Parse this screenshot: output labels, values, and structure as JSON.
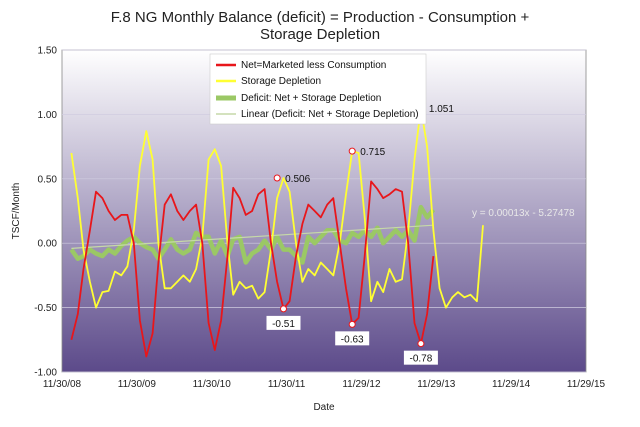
{
  "chart_data": {
    "type": "line",
    "title_line1": "F.8 NG Monthly Balance (deficit) = Production - Consumption +",
    "title_line2": "Storage Depletion",
    "xlabel": "Date",
    "ylabel": "TSCF/Month",
    "x_ticks": [
      "11/30/08",
      "11/30/09",
      "11/30/10",
      "11/30/11",
      "11/29/12",
      "11/29/13",
      "11/29/14",
      "11/29/15"
    ],
    "xlim": [
      "2008-11-30",
      "2015-11-29"
    ],
    "ylim": [
      -1.0,
      1.5
    ],
    "y_ticks": [
      "-1.00",
      "-0.50",
      "0.00",
      "0.50",
      "1.00",
      "1.50"
    ],
    "y_tick_values": [
      -1.0,
      -0.5,
      0.0,
      0.5,
      1.0,
      1.5
    ],
    "grid": "horizontal",
    "legend_position": "top-center",
    "background_gradient": [
      "#ffffff",
      "#5c4a8a"
    ],
    "series": [
      {
        "name": "Net=Marketed less Consumption",
        "color": "#e8161b",
        "start": "2009-01",
        "values": [
          -0.75,
          -0.55,
          -0.2,
          0.1,
          0.4,
          0.35,
          0.25,
          0.18,
          0.22,
          0.22,
          0.0,
          -0.6,
          -0.88,
          -0.7,
          -0.15,
          0.3,
          0.38,
          0.25,
          0.18,
          0.25,
          0.3,
          0.0,
          -0.62,
          -0.83,
          -0.6,
          -0.1,
          0.43,
          0.35,
          0.22,
          0.25,
          0.38,
          0.42,
          0.0,
          -0.3,
          -0.51,
          -0.45,
          -0.1,
          0.15,
          0.3,
          0.25,
          0.2,
          0.3,
          0.35,
          0.0,
          -0.35,
          -0.63,
          -0.58,
          -0.1,
          0.48,
          0.42,
          0.35,
          0.38,
          0.42,
          0.4,
          0.0,
          -0.62,
          -0.78,
          -0.55,
          -0.1
        ]
      },
      {
        "name": "Storage Depletion",
        "color": "#ffff33",
        "start": "2009-01",
        "values": [
          0.7,
          0.35,
          -0.05,
          -0.3,
          -0.5,
          -0.38,
          -0.37,
          -0.22,
          -0.25,
          -0.18,
          0.1,
          0.6,
          0.87,
          0.65,
          0.0,
          -0.35,
          -0.35,
          -0.3,
          -0.25,
          -0.3,
          -0.2,
          0.05,
          0.65,
          0.73,
          0.6,
          0.0,
          -0.4,
          -0.3,
          -0.35,
          -0.33,
          -0.43,
          -0.38,
          -0.05,
          0.35,
          0.506,
          0.4,
          0.0,
          -0.3,
          -0.2,
          -0.25,
          -0.15,
          -0.2,
          -0.25,
          0.0,
          0.38,
          0.715,
          0.7,
          0.2,
          -0.45,
          -0.3,
          -0.38,
          -0.2,
          -0.3,
          -0.28,
          0.1,
          0.65,
          1.051,
          0.75,
          0.1,
          -0.35,
          -0.5,
          -0.42,
          -0.38,
          -0.42,
          -0.4,
          -0.45,
          0.14
        ]
      },
      {
        "name": "Deficit: Net + Storage Depletion",
        "color": "#9bc865",
        "start": "2009-01",
        "values": [
          -0.05,
          -0.12,
          -0.1,
          -0.05,
          -0.08,
          -0.1,
          -0.05,
          -0.08,
          -0.02,
          0.02,
          0.05,
          0.0,
          -0.03,
          -0.05,
          -0.12,
          -0.05,
          0.03,
          -0.05,
          -0.08,
          -0.05,
          0.08,
          0.05,
          0.05,
          -0.08,
          0.02,
          -0.1,
          0.03,
          0.05,
          -0.15,
          -0.08,
          -0.05,
          0.02,
          -0.05,
          0.05,
          -0.05,
          -0.05,
          -0.1,
          -0.15,
          0.05,
          0.0,
          0.05,
          0.1,
          0.1,
          0.02,
          0.0,
          0.08,
          0.05,
          0.1,
          0.05,
          0.12,
          0.0,
          0.05,
          0.1,
          0.05,
          0.1,
          0.02,
          0.28,
          0.2,
          0.26
        ]
      },
      {
        "name": "Linear (Deficit: Net + Storage Depletion)",
        "color": "#c6d9a8",
        "trendline": {
          "from": [
            "2009-01",
            -0.04
          ],
          "to": [
            "2013-11",
            0.14
          ]
        }
      }
    ],
    "annotations": [
      {
        "text": "0.506",
        "date": "2011-10",
        "value": 0.506,
        "series": "Storage Depletion",
        "align": "right"
      },
      {
        "text": "0.715",
        "date": "2012-10",
        "value": 0.715,
        "series": "Storage Depletion",
        "align": "right"
      },
      {
        "text": "1.051",
        "date": "2013-09",
        "value": 1.051,
        "series": "Storage Depletion",
        "align": "right"
      },
      {
        "text": "-0.51",
        "date": "2011-11",
        "value": -0.51,
        "series": "Net=Marketed less Consumption",
        "align": "below"
      },
      {
        "text": "-0.63",
        "date": "2012-10",
        "value": -0.63,
        "series": "Net=Marketed less Consumption",
        "align": "below"
      },
      {
        "text": "-0.78",
        "date": "2013-09",
        "value": -0.78,
        "series": "Net=Marketed less Consumption",
        "align": "below"
      }
    ],
    "trend_equation": "y = 0.00013x - 5.27478"
  }
}
